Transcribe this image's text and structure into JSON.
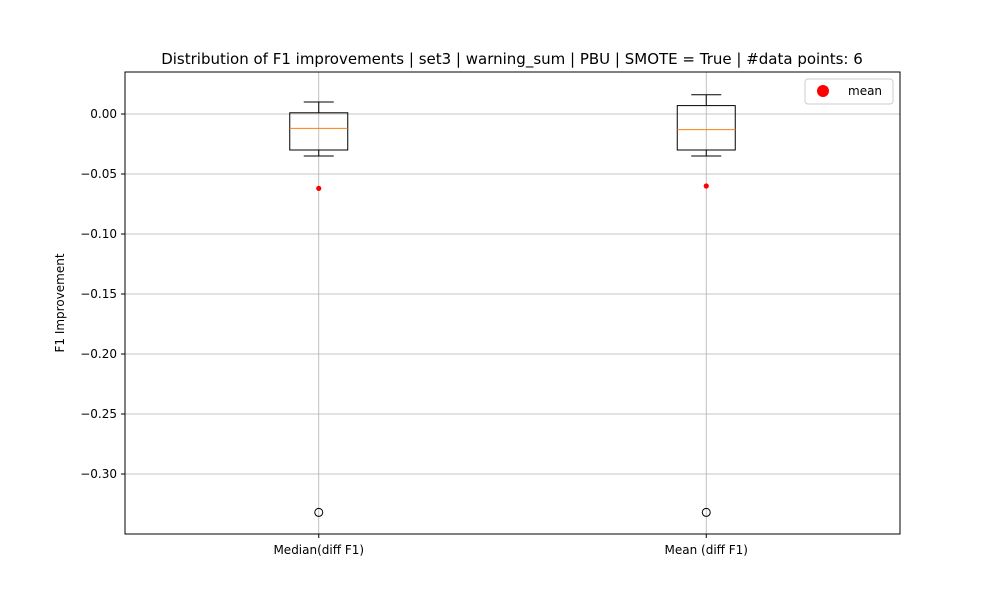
{
  "chart_data": {
    "type": "box",
    "title": "Distribution of F1 improvements | set3 | warning_sum | PBU | SMOTE = True | #data points: 6",
    "xlabel": "",
    "ylabel": "F1 Improvement",
    "ylim": [
      -0.35,
      0.035
    ],
    "yticks": [
      0.0,
      -0.05,
      -0.1,
      -0.15,
      -0.2,
      -0.25,
      -0.3
    ],
    "ytick_labels": [
      "0.00",
      "−0.05",
      "−0.10",
      "−0.15",
      "−0.20",
      "−0.25",
      "−0.30"
    ],
    "grid": true,
    "legend": {
      "entries": [
        {
          "label": "mean",
          "color": "#ff0000"
        }
      ],
      "placement": "top-right"
    },
    "categories": [
      "Median(diff F1)",
      "Mean (diff F1)"
    ],
    "boxes": [
      {
        "category": "Median(diff F1)",
        "whisker_low": -0.035,
        "q1": -0.03,
        "median": -0.012,
        "q3": 0.001,
        "whisker_high": 0.01,
        "outliers": [
          -0.332
        ],
        "mean": -0.062
      },
      {
        "category": "Mean (diff F1)",
        "whisker_low": -0.035,
        "q1": -0.03,
        "median": -0.013,
        "q3": 0.007,
        "whisker_high": 0.016,
        "outliers": [
          -0.332
        ],
        "mean": -0.06
      }
    ],
    "colors": {
      "box": "#000000",
      "median": "#ff7f0e",
      "mean": "#ff0000",
      "grid": "#b0b0b0"
    }
  }
}
